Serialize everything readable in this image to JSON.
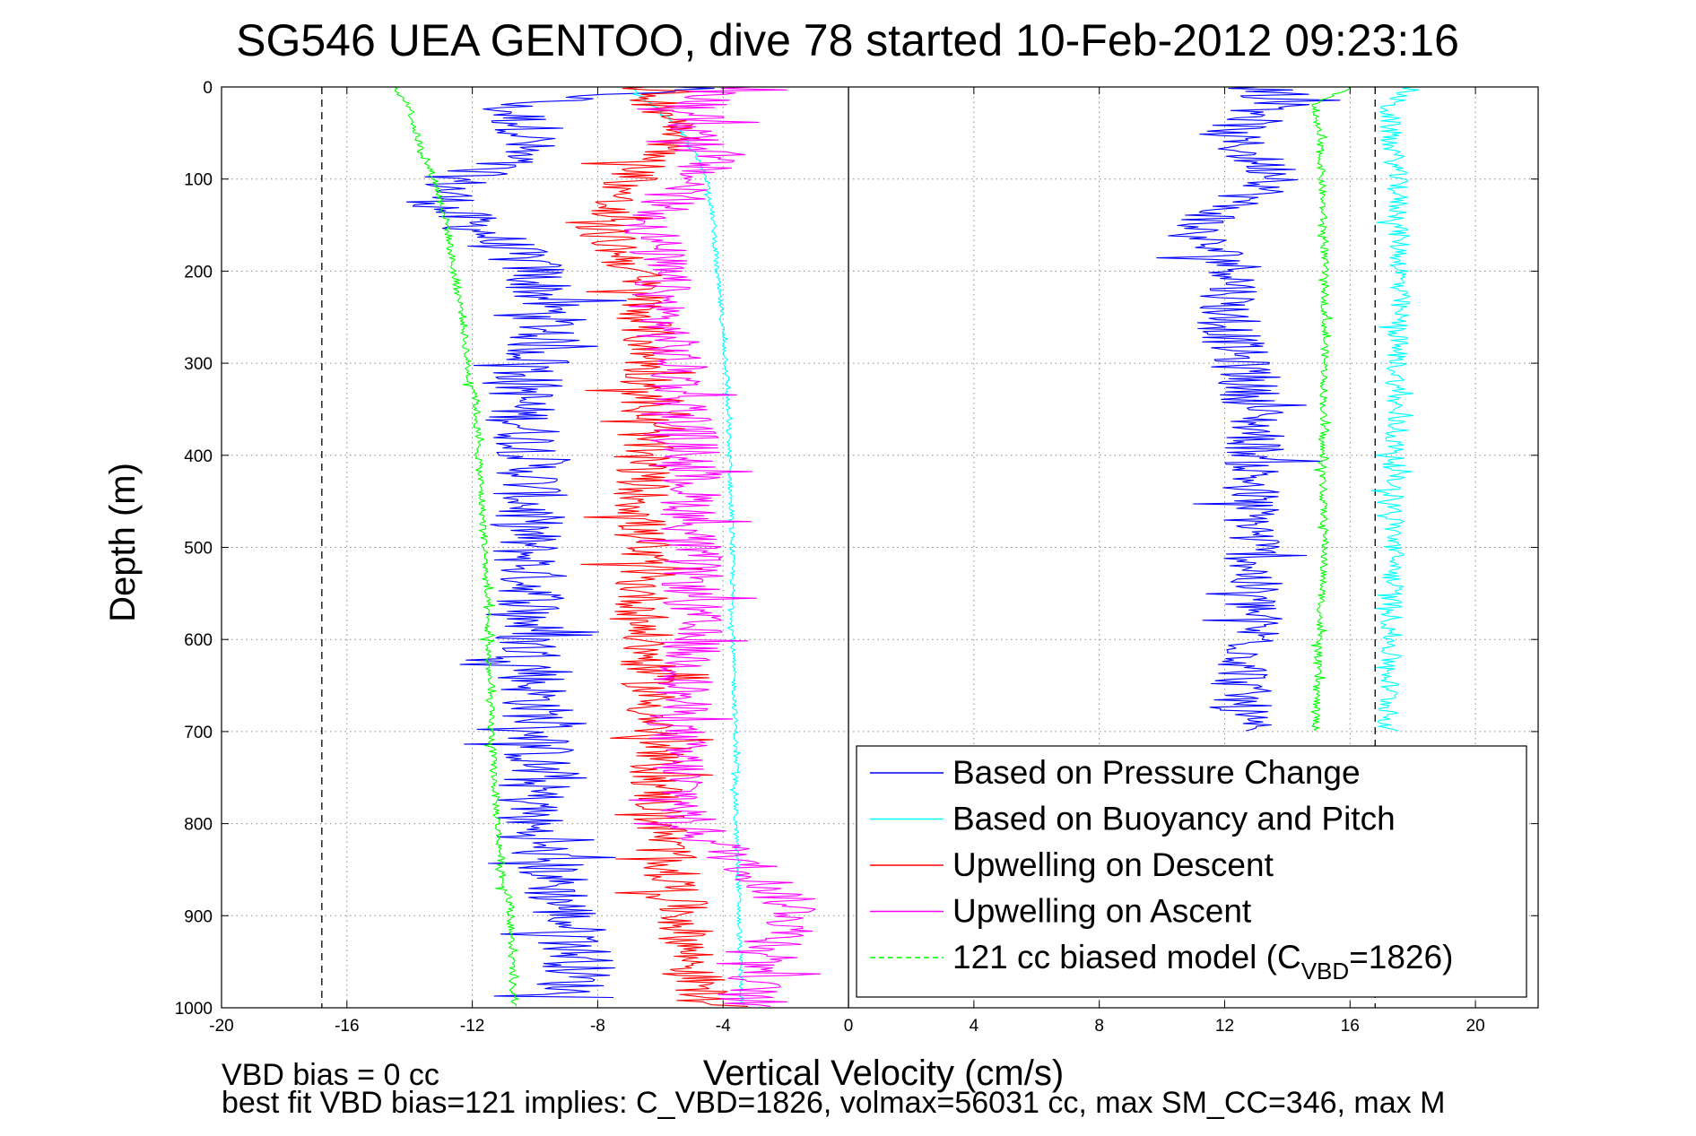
{
  "chart_data": {
    "type": "line",
    "title": "SG546 UEA GENTOO, dive 78 started 10-Feb-2012 09:23:16",
    "xlabel": "Vertical Velocity (cm/s)",
    "ylabel": "Depth (m)",
    "xlim": [
      -20,
      22
    ],
    "ylim": [
      0,
      1000
    ],
    "y_reversed": true,
    "grid": true,
    "x_ticks": [
      -20,
      -16,
      -12,
      -8,
      -4,
      0,
      4,
      8,
      12,
      16,
      20
    ],
    "y_ticks": [
      0,
      100,
      200,
      300,
      400,
      500,
      600,
      700,
      800,
      900,
      1000
    ],
    "reference_lines": [
      {
        "x": -16.8,
        "style": "dashed",
        "color": "#000000"
      },
      {
        "x": 0,
        "style": "solid",
        "color": "#000000"
      },
      {
        "x": 16.8,
        "style": "dashed",
        "color": "#000000"
      }
    ],
    "legend_position": "bottom-right",
    "legend": [
      {
        "label": "Based on Pressure Change",
        "color": "#0000ff",
        "dash": "solid"
      },
      {
        "label": "Based on Buoyancy and Pitch",
        "color": "#00ffff",
        "dash": "solid"
      },
      {
        "label": "Upwelling on Descent",
        "color": "#ff0000",
        "dash": "solid"
      },
      {
        "label": "Upwelling on Ascent",
        "color": "#ff00ff",
        "dash": "solid"
      },
      {
        "label_main": "121 cc biased model (C",
        "label_sub": "VBD",
        "label_tail": "=1826)",
        "color": "#00ff00",
        "dash": "dashed"
      }
    ],
    "series": [
      {
        "name": "Based on Pressure Change (descent)",
        "color": "#0000ff",
        "depth": [
          0,
          20,
          50,
          80,
          100,
          130,
          160,
          200,
          250,
          300,
          350,
          400,
          450,
          500,
          550,
          600,
          650,
          700,
          750,
          800,
          850,
          900,
          950,
          990
        ],
        "values": [
          -5,
          -11,
          -10,
          -11,
          -12.5,
          -13,
          -11.5,
          -10,
          -9.5,
          -10,
          -10.5,
          -10,
          -10.2,
          -10.3,
          -10,
          -10.2,
          -10,
          -9.8,
          -10,
          -10.2,
          -9.5,
          -9,
          -8.5,
          -9
        ],
        "amplitude": 1.2
      },
      {
        "name": "Based on Pressure Change (ascent)",
        "color": "#0000ff",
        "depth": [
          0,
          20,
          50,
          80,
          100,
          130,
          160,
          200,
          250,
          300,
          350,
          400,
          450,
          500,
          550,
          600,
          650,
          700
        ],
        "values": [
          13,
          14,
          12,
          13,
          14,
          12,
          11,
          12.5,
          12,
          12.5,
          13,
          13,
          12.8,
          13,
          12.8,
          13,
          12.5,
          12.5
        ],
        "amplitude": 1.0
      },
      {
        "name": "Based on Buoyancy and Pitch (descent)",
        "color": "#00ffff",
        "depth": [
          0,
          40,
          80,
          100,
          150,
          200,
          300,
          400,
          500,
          600,
          700,
          800,
          870,
          900,
          1000
        ],
        "values": [
          -7,
          -5.5,
          -4.8,
          -4.5,
          -4.3,
          -4.2,
          -3.9,
          -3.8,
          -3.7,
          -3.7,
          -3.6,
          -3.6,
          -3.5,
          -3.5,
          -3.4
        ],
        "amplitude": 0.08
      },
      {
        "name": "Based on Buoyancy and Pitch (ascent)",
        "color": "#00ffff",
        "depth": [
          0,
          20,
          50,
          100,
          200,
          300,
          400,
          500,
          600,
          700
        ],
        "values": [
          18,
          17.2,
          17.3,
          17.5,
          17.6,
          17.5,
          17.4,
          17.4,
          17.3,
          17.2
        ],
        "amplitude": 0.35
      },
      {
        "name": "Upwelling on Descent",
        "color": "#ff0000",
        "depth": [
          0,
          20,
          50,
          80,
          100,
          120,
          150,
          200,
          250,
          300,
          350,
          400,
          500,
          600,
          700,
          800,
          900,
          950,
          1000
        ],
        "values": [
          -6.5,
          -6,
          -5,
          -6.5,
          -6.8,
          -7.5,
          -8,
          -6.8,
          -6.5,
          -6.3,
          -6.5,
          -6.5,
          -6.7,
          -6.5,
          -6.2,
          -6,
          -5.3,
          -5,
          -4.5
        ],
        "amplitude": 0.9
      },
      {
        "name": "Upwelling on Ascent",
        "color": "#ff00ff",
        "depth": [
          0,
          20,
          50,
          80,
          100,
          150,
          200,
          250,
          300,
          400,
          500,
          600,
          700,
          800,
          850,
          900,
          950,
          1000
        ],
        "values": [
          -4,
          -5,
          -4.8,
          -4.5,
          -5,
          -6.3,
          -6,
          -6,
          -5.5,
          -5,
          -5,
          -5,
          -5.5,
          -5.2,
          -3,
          -1.5,
          -2.5,
          -3.5
        ],
        "amplitude": 1.0
      },
      {
        "name": "121 cc biased model (descent)",
        "color": "#00ff00",
        "depth": [
          0,
          20,
          50,
          80,
          100,
          150,
          200,
          250,
          320,
          330,
          400,
          500,
          600,
          700,
          800,
          870,
          880,
          1000
        ],
        "values": [
          -14.5,
          -14,
          -13.8,
          -13.5,
          -13.2,
          -12.8,
          -12.6,
          -12.3,
          -12.1,
          -11.9,
          -11.8,
          -11.6,
          -11.5,
          -11.4,
          -11.2,
          -11,
          -10.8,
          -10.7
        ],
        "amplitude": 0.12
      },
      {
        "name": "121 cc biased model (ascent)",
        "color": "#00ff00",
        "depth": [
          0,
          20,
          50,
          100,
          200,
          300,
          400,
          500,
          600,
          700
        ],
        "values": [
          16,
          14.8,
          15,
          15.1,
          15.2,
          15.2,
          15.1,
          15.2,
          15.0,
          14.9
        ],
        "amplitude": 0.12
      }
    ],
    "annotations": [
      "VBD bias = 0 cc",
      "best fit VBD bias=121 implies: C_VBD=1826, volmax=56031 cc, max SM_CC=346, max M"
    ]
  }
}
